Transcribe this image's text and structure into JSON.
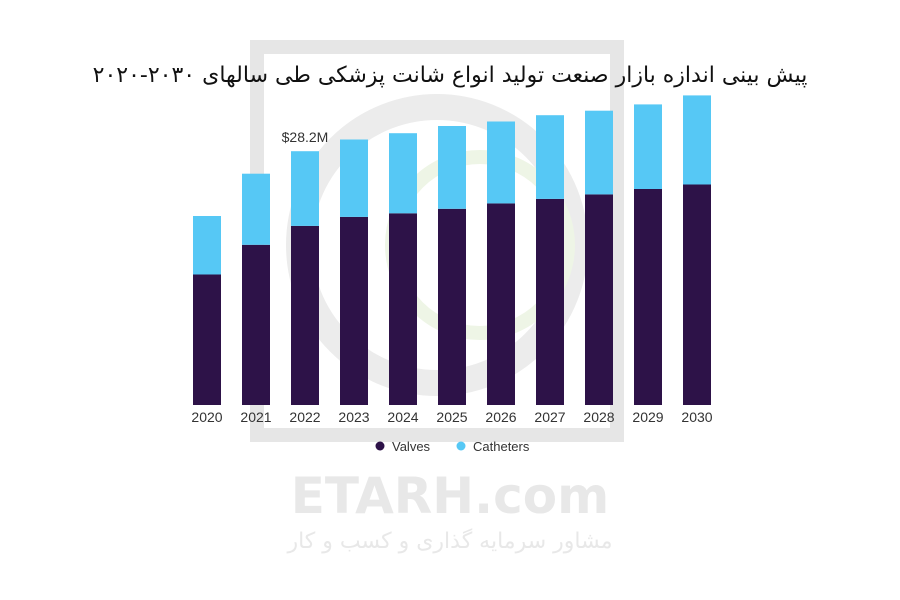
{
  "title": "پیش بینی اندازه بازار صنعت تولید انواع شانت پزشکی طی سالهای ۲۰۳۰-۲۰۲۰",
  "watermark": {
    "brand": "ETARH.com",
    "tagline": "مشاور سرمایه گذاری و کسب و کار"
  },
  "chart_data": {
    "type": "bar",
    "stacked": true,
    "categories": [
      "2020",
      "2021",
      "2022",
      "2023",
      "2024",
      "2025",
      "2026",
      "2027",
      "2028",
      "2029",
      "2030"
    ],
    "series": [
      {
        "name": "Valves",
        "color": "#2d1248",
        "values": [
          14.5,
          17.8,
          19.9,
          20.9,
          21.3,
          21.8,
          22.4,
          22.9,
          23.4,
          24.0,
          24.5
        ]
      },
      {
        "name": "Catheters",
        "color": "#56c8f5",
        "values": [
          6.5,
          7.9,
          8.3,
          8.6,
          8.9,
          9.2,
          9.1,
          9.3,
          9.3,
          9.4,
          9.9
        ]
      }
    ],
    "annotations": [
      {
        "category": "2022",
        "text": "$28.2M"
      }
    ],
    "ylim": [
      0,
      36
    ],
    "grid": false,
    "legend": "bottom"
  }
}
